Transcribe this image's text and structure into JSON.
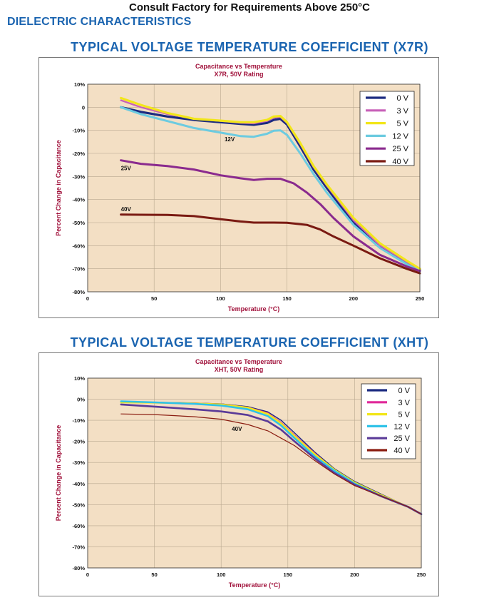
{
  "header": {
    "top_note": "Consult Factory for Requirements Above 250°C",
    "section": "DIELECTRIC CHARACTERISTICS"
  },
  "chart_data": [
    {
      "type": "line",
      "heading": "TYPICAL VOLTAGE TEMPERATURE COEFFICIENT (X7R)",
      "title": "Capacitance vs Temperature",
      "subtitle": "X7R, 50V Rating",
      "xlabel": "Temperature (°C)",
      "ylabel": "Percent Change in Capacitance",
      "xlim": [
        0,
        250
      ],
      "ylim": [
        -80,
        10
      ],
      "xticks": [
        "0",
        "50",
        "100",
        "150",
        "200",
        "250"
      ],
      "yticks": [
        "10%",
        "0",
        "-10%",
        "-20%",
        "-30%",
        "-40%",
        "-50%",
        "-60%",
        "-70%",
        "-80%"
      ],
      "legend_position": "top-right",
      "grid": true,
      "annotations": [
        {
          "text": "12V",
          "x": 103,
          "y": -14.8
        },
        {
          "text": "25V",
          "x": 25,
          "y": -27.2
        },
        {
          "text": "40V",
          "x": 25,
          "y": -45
        }
      ],
      "series": [
        {
          "name": "0 V",
          "color": "#1b2a80",
          "width": 3.2,
          "points": [
            [
              25,
              0
            ],
            [
              40,
              -2
            ],
            [
              60,
              -4
            ],
            [
              80,
              -5.5
            ],
            [
              100,
              -6.5
            ],
            [
              115,
              -7.2
            ],
            [
              125,
              -7.6
            ],
            [
              135,
              -6.8
            ],
            [
              140,
              -5.5
            ],
            [
              145,
              -5
            ],
            [
              150,
              -7.5
            ],
            [
              160,
              -17
            ],
            [
              170,
              -27
            ],
            [
              180,
              -35
            ],
            [
              200,
              -50
            ],
            [
              220,
              -60
            ],
            [
              240,
              -67
            ],
            [
              250,
              -70.5
            ]
          ]
        },
        {
          "name": "3 V",
          "color": "#c860b8",
          "width": 2.2,
          "points": [
            [
              25,
              3
            ],
            [
              40,
              0
            ],
            [
              60,
              -3
            ],
            [
              80,
              -5
            ],
            [
              100,
              -6
            ],
            [
              115,
              -6.8
            ],
            [
              125,
              -7
            ],
            [
              135,
              -6
            ],
            [
              140,
              -4.6
            ],
            [
              145,
              -4.3
            ],
            [
              150,
              -6.8
            ],
            [
              160,
              -16
            ],
            [
              170,
              -26
            ],
            [
              180,
              -34
            ],
            [
              200,
              -49
            ],
            [
              220,
              -60
            ],
            [
              240,
              -67
            ],
            [
              250,
              -70.5
            ]
          ]
        },
        {
          "name": "5 V",
          "color": "#f2e61a",
          "width": 3.2,
          "points": [
            [
              25,
              4
            ],
            [
              40,
              1
            ],
            [
              60,
              -2.5
            ],
            [
              80,
              -5
            ],
            [
              100,
              -5.8
            ],
            [
              115,
              -6.5
            ],
            [
              125,
              -6.5
            ],
            [
              135,
              -5.5
            ],
            [
              140,
              -4
            ],
            [
              145,
              -3.8
            ],
            [
              150,
              -6.5
            ],
            [
              160,
              -15.5
            ],
            [
              170,
              -25.5
            ],
            [
              180,
              -33.5
            ],
            [
              200,
              -48
            ],
            [
              220,
              -59
            ],
            [
              240,
              -66.5
            ],
            [
              250,
              -70
            ]
          ]
        },
        {
          "name": "12 V",
          "color": "#6ccbe0",
          "width": 3,
          "points": [
            [
              25,
              0
            ],
            [
              40,
              -3
            ],
            [
              60,
              -6
            ],
            [
              80,
              -9
            ],
            [
              100,
              -11
            ],
            [
              115,
              -12.5
            ],
            [
              125,
              -12.8
            ],
            [
              135,
              -11.5
            ],
            [
              140,
              -10.2
            ],
            [
              145,
              -10
            ],
            [
              150,
              -12
            ],
            [
              160,
              -20
            ],
            [
              170,
              -29
            ],
            [
              180,
              -37
            ],
            [
              200,
              -51
            ],
            [
              220,
              -61
            ],
            [
              240,
              -68
            ],
            [
              250,
              -71
            ]
          ]
        },
        {
          "name": "25 V",
          "color": "#8a2a8e",
          "width": 3,
          "points": [
            [
              25,
              -23
            ],
            [
              40,
              -24.5
            ],
            [
              60,
              -25.5
            ],
            [
              80,
              -27
            ],
            [
              100,
              -29.5
            ],
            [
              115,
              -30.8
            ],
            [
              125,
              -31.5
            ],
            [
              135,
              -31
            ],
            [
              145,
              -31
            ],
            [
              155,
              -33
            ],
            [
              165,
              -37
            ],
            [
              175,
              -42
            ],
            [
              185,
              -48
            ],
            [
              200,
              -56
            ],
            [
              220,
              -64
            ],
            [
              240,
              -69
            ],
            [
              250,
              -71
            ]
          ]
        },
        {
          "name": "40 V",
          "color": "#7a1a12",
          "width": 3,
          "points": [
            [
              25,
              -46.5
            ],
            [
              40,
              -46.6
            ],
            [
              60,
              -46.7
            ],
            [
              80,
              -47.2
            ],
            [
              100,
              -48.5
            ],
            [
              115,
              -49.5
            ],
            [
              125,
              -50
            ],
            [
              140,
              -50
            ],
            [
              150,
              -50.1
            ],
            [
              165,
              -51
            ],
            [
              175,
              -53
            ],
            [
              185,
              -56
            ],
            [
              200,
              -60
            ],
            [
              220,
              -65.5
            ],
            [
              240,
              -70
            ],
            [
              250,
              -72
            ]
          ]
        }
      ]
    },
    {
      "type": "line",
      "heading": "TYPICAL VOLTAGE TEMPERATURE COEFFICIENT (XHT)",
      "title": "Capacitance vs Temperature",
      "subtitle": "XHT, 50V Rating",
      "xlabel": "Temperature (°C)",
      "ylabel": "Percent Change in Capacitance",
      "xlim": [
        0,
        250
      ],
      "ylim": [
        -80,
        10
      ],
      "xticks": [
        "0",
        "50",
        "100",
        "150",
        "200",
        "250"
      ],
      "yticks": [
        "10%",
        "0%",
        "-10%",
        "-20%",
        "-30%",
        "-40%",
        "-50%",
        "-60%",
        "-70%",
        "-80%"
      ],
      "legend_position": "top-right",
      "grid": true,
      "annotations": [
        {
          "text": "40V",
          "x": 108,
          "y": -15
        }
      ],
      "series": [
        {
          "name": "0 V",
          "color": "#1b2a80",
          "width": 1.4,
          "points": [
            [
              25,
              -1.5
            ],
            [
              50,
              -1.5
            ],
            [
              80,
              -1.8
            ],
            [
              100,
              -2.2
            ],
            [
              120,
              -3.5
            ],
            [
              135,
              -6
            ],
            [
              145,
              -10
            ],
            [
              155,
              -16
            ],
            [
              170,
              -25
            ],
            [
              185,
              -33
            ],
            [
              200,
              -39
            ],
            [
              220,
              -45
            ],
            [
              240,
              -51
            ],
            [
              250,
              -54.5
            ]
          ]
        },
        {
          "name": "3 V",
          "color": "#e02a9a",
          "width": 1.6,
          "points": [
            [
              25,
              -1.5
            ],
            [
              50,
              -1.5
            ],
            [
              80,
              -1.8
            ],
            [
              100,
              -2.3
            ],
            [
              120,
              -3.8
            ],
            [
              135,
              -6.5
            ],
            [
              145,
              -11
            ],
            [
              155,
              -17
            ],
            [
              170,
              -25.5
            ],
            [
              185,
              -33.5
            ],
            [
              200,
              -39.5
            ],
            [
              220,
              -45.5
            ],
            [
              240,
              -51
            ],
            [
              250,
              -54.5
            ]
          ]
        },
        {
          "name": "5 V",
          "color": "#f2e61a",
          "width": 2.6,
          "points": [
            [
              25,
              -1.5
            ],
            [
              50,
              -1.6
            ],
            [
              80,
              -2
            ],
            [
              100,
              -2.5
            ],
            [
              120,
              -4
            ],
            [
              135,
              -7
            ],
            [
              145,
              -11.5
            ],
            [
              155,
              -17.5
            ],
            [
              170,
              -26
            ],
            [
              185,
              -33.5
            ],
            [
              200,
              -39.5
            ],
            [
              220,
              -45.5
            ],
            [
              240,
              -51
            ],
            [
              250,
              -54.5
            ]
          ]
        },
        {
          "name": "12 V",
          "color": "#2ec2e8",
          "width": 2.6,
          "points": [
            [
              25,
              -1
            ],
            [
              50,
              -1.5
            ],
            [
              80,
              -2.2
            ],
            [
              100,
              -3
            ],
            [
              120,
              -4.8
            ],
            [
              135,
              -8
            ],
            [
              145,
              -12.5
            ],
            [
              155,
              -18.5
            ],
            [
              170,
              -27
            ],
            [
              185,
              -34
            ],
            [
              200,
              -40
            ],
            [
              220,
              -46
            ],
            [
              240,
              -51
            ],
            [
              250,
              -54.5
            ]
          ]
        },
        {
          "name": "25 V",
          "color": "#5a3a98",
          "width": 2.6,
          "points": [
            [
              25,
              -2.5
            ],
            [
              50,
              -3.5
            ],
            [
              80,
              -4.8
            ],
            [
              100,
              -5.8
            ],
            [
              120,
              -7.5
            ],
            [
              135,
              -10.5
            ],
            [
              145,
              -14.5
            ],
            [
              155,
              -20
            ],
            [
              170,
              -28
            ],
            [
              185,
              -35
            ],
            [
              200,
              -40.5
            ],
            [
              220,
              -46
            ],
            [
              240,
              -51
            ],
            [
              250,
              -54.5
            ]
          ]
        },
        {
          "name": "40 V",
          "color": "#8a1c10",
          "width": 1.2,
          "points": [
            [
              25,
              -7
            ],
            [
              50,
              -7.3
            ],
            [
              80,
              -8.3
            ],
            [
              100,
              -9.5
            ],
            [
              120,
              -12
            ],
            [
              135,
              -15
            ],
            [
              145,
              -18.5
            ],
            [
              155,
              -22
            ],
            [
              170,
              -29
            ],
            [
              185,
              -35.5
            ],
            [
              200,
              -41
            ],
            [
              220,
              -46
            ],
            [
              240,
              -51
            ],
            [
              250,
              -54.5
            ]
          ]
        }
      ]
    }
  ]
}
